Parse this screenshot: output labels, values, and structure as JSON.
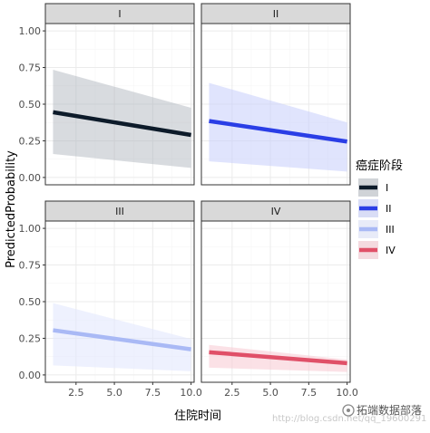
{
  "chart_data": {
    "type": "line",
    "facet_layout": "2x2",
    "xlabel": "住院时间",
    "ylabel": "PredictedProbability",
    "xlim": [
      0.5,
      10.2
    ],
    "ylim": [
      -0.05,
      1.05
    ],
    "xticks": [
      2.5,
      5.0,
      7.5,
      10.0
    ],
    "xtick_labels": [
      "2.5",
      "5.0",
      "7.5",
      "10.0"
    ],
    "yticks": [
      0.0,
      0.25,
      0.5,
      0.75,
      1.0
    ],
    "ytick_labels": [
      "0.00",
      "0.25",
      "0.50",
      "0.75",
      "1.00"
    ],
    "grid": true,
    "legend": {
      "title": "癌症阶段",
      "position": "right",
      "entries": [
        "I",
        "II",
        "III",
        "IV"
      ]
    },
    "panels": [
      {
        "label": "I",
        "color": "#0d1b2a",
        "band_color": "#a9b0b8",
        "band_opacity": 0.45,
        "x": [
          1,
          10
        ],
        "y": [
          0.445,
          0.29
        ],
        "lower": [
          0.16,
          0.065
        ],
        "upper": [
          0.735,
          0.475
        ]
      },
      {
        "label": "II",
        "color": "#2a3ee6",
        "band_color": "#c6cdfb",
        "band_opacity": 0.55,
        "x": [
          1,
          10
        ],
        "y": [
          0.385,
          0.245
        ],
        "lower": [
          0.11,
          0.04
        ],
        "upper": [
          0.645,
          0.375
        ]
      },
      {
        "label": "III",
        "color": "#a9b9f5",
        "band_color": "#e2e8fd",
        "band_opacity": 0.6,
        "x": [
          1,
          10
        ],
        "y": [
          0.305,
          0.175
        ],
        "lower": [
          0.065,
          0.025
        ],
        "upper": [
          0.49,
          0.245
        ]
      },
      {
        "label": "IV",
        "color": "#e05068",
        "band_color": "#f7c9d2",
        "band_opacity": 0.55,
        "x": [
          1,
          10
        ],
        "y": [
          0.155,
          0.08
        ],
        "lower": [
          0.05,
          0.02
        ],
        "upper": [
          0.205,
          0.105
        ]
      }
    ]
  },
  "watermark": "http://blog.csdn.net/qq_19600291",
  "brand": "拓端数据部落"
}
